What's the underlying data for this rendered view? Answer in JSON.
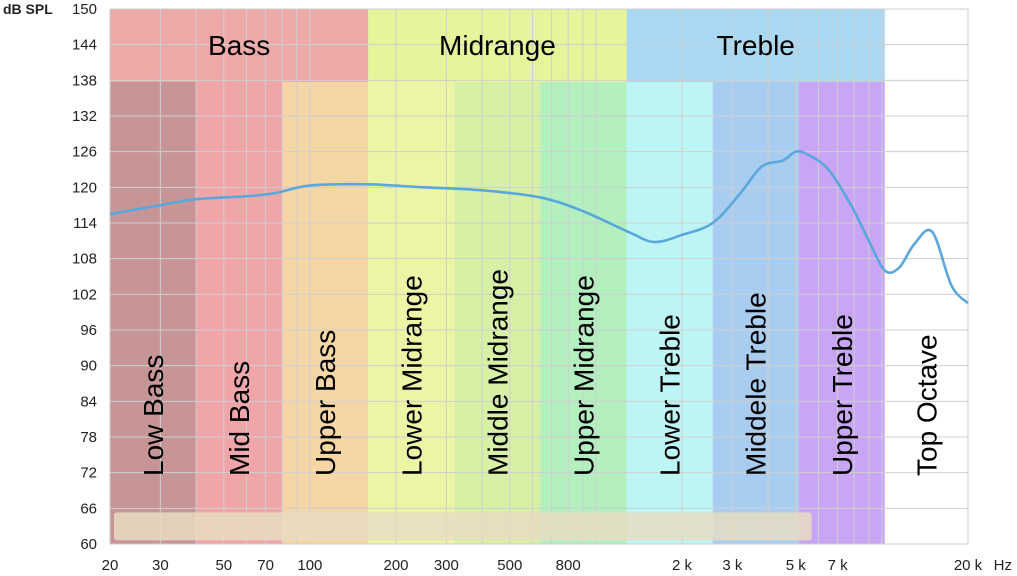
{
  "chart_data": {
    "type": "line",
    "y_unit": "dB SPL",
    "x_unit": "Hz",
    "x_scale": "log",
    "xlim": [
      20,
      20000
    ],
    "ylim": [
      60,
      150
    ],
    "grid": true,
    "y_ticks": [
      60,
      66,
      72,
      78,
      84,
      90,
      96,
      102,
      108,
      114,
      120,
      126,
      132,
      138,
      144,
      150
    ],
    "x_ticks": [
      {
        "value": 20,
        "label": "20"
      },
      {
        "value": 30,
        "label": "30"
      },
      {
        "value": 50,
        "label": "50"
      },
      {
        "value": 70,
        "label": "70"
      },
      {
        "value": 100,
        "label": "100"
      },
      {
        "value": 200,
        "label": "200"
      },
      {
        "value": 300,
        "label": "300"
      },
      {
        "value": 500,
        "label": "500"
      },
      {
        "value": 800,
        "label": "800"
      },
      {
        "value": 2000,
        "label": "2 k"
      },
      {
        "value": 3000,
        "label": "3 k"
      },
      {
        "value": 5000,
        "label": "5 k"
      },
      {
        "value": 7000,
        "label": "7 k"
      },
      {
        "value": 20000,
        "label": "20 k"
      }
    ],
    "groups": [
      {
        "label": "Bass",
        "from": 20,
        "to": 160,
        "color": "#eea8a8"
      },
      {
        "label": "Midrange",
        "from": 160,
        "to": 1280,
        "color": "#e6f59a"
      },
      {
        "label": "Treble",
        "from": 1280,
        "to": 10240,
        "color": "#a9d9f2"
      }
    ],
    "bands": [
      {
        "label": "Low Bass",
        "from": 20,
        "to": 40,
        "color": "#c79595"
      },
      {
        "label": "Mid Bass",
        "from": 40,
        "to": 80,
        "color": "#f0a5a9"
      },
      {
        "label": "Upper Bass",
        "from": 80,
        "to": 160,
        "color": "#f7d6a6"
      },
      {
        "label": "Lower Midrange",
        "from": 160,
        "to": 320,
        "color": "#ecf5a6"
      },
      {
        "label": "Middle Midrange",
        "from": 320,
        "to": 640,
        "color": "#d6f0a6"
      },
      {
        "label": "Upper Midrange",
        "from": 640,
        "to": 1280,
        "color": "#b3efbf"
      },
      {
        "label": "Lower Treble",
        "from": 1280,
        "to": 2560,
        "color": "#bdf5f5"
      },
      {
        "label": "Middele Treble",
        "from": 2560,
        "to": 5120,
        "color": "#a9cdf0"
      },
      {
        "label": "Upper Treble",
        "from": 5120,
        "to": 10240,
        "color": "#c9a6f5"
      },
      {
        "label": "Top Octave",
        "from": 10240,
        "to": 20000,
        "color": "#ffffff"
      }
    ],
    "series": [
      {
        "color": "#5aa7dc",
        "x": [
          20,
          30,
          40,
          60,
          75,
          100,
          160,
          250,
          400,
          640,
          900,
          1300,
          1600,
          2000,
          2560,
          3200,
          3800,
          4500,
          5000,
          5500,
          6500,
          7800,
          9000,
          10240,
          11500,
          13000,
          15000,
          17500,
          20000
        ],
        "y": [
          115.5,
          117.0,
          118.0,
          118.5,
          119.0,
          120.3,
          120.5,
          120.0,
          119.5,
          118.3,
          116.0,
          112.5,
          110.8,
          112.0,
          114.0,
          119.0,
          123.5,
          124.5,
          126.0,
          125.5,
          123.0,
          117.0,
          111.0,
          106.0,
          106.5,
          110.5,
          112.5,
          103.5,
          100.5
        ]
      }
    ]
  }
}
